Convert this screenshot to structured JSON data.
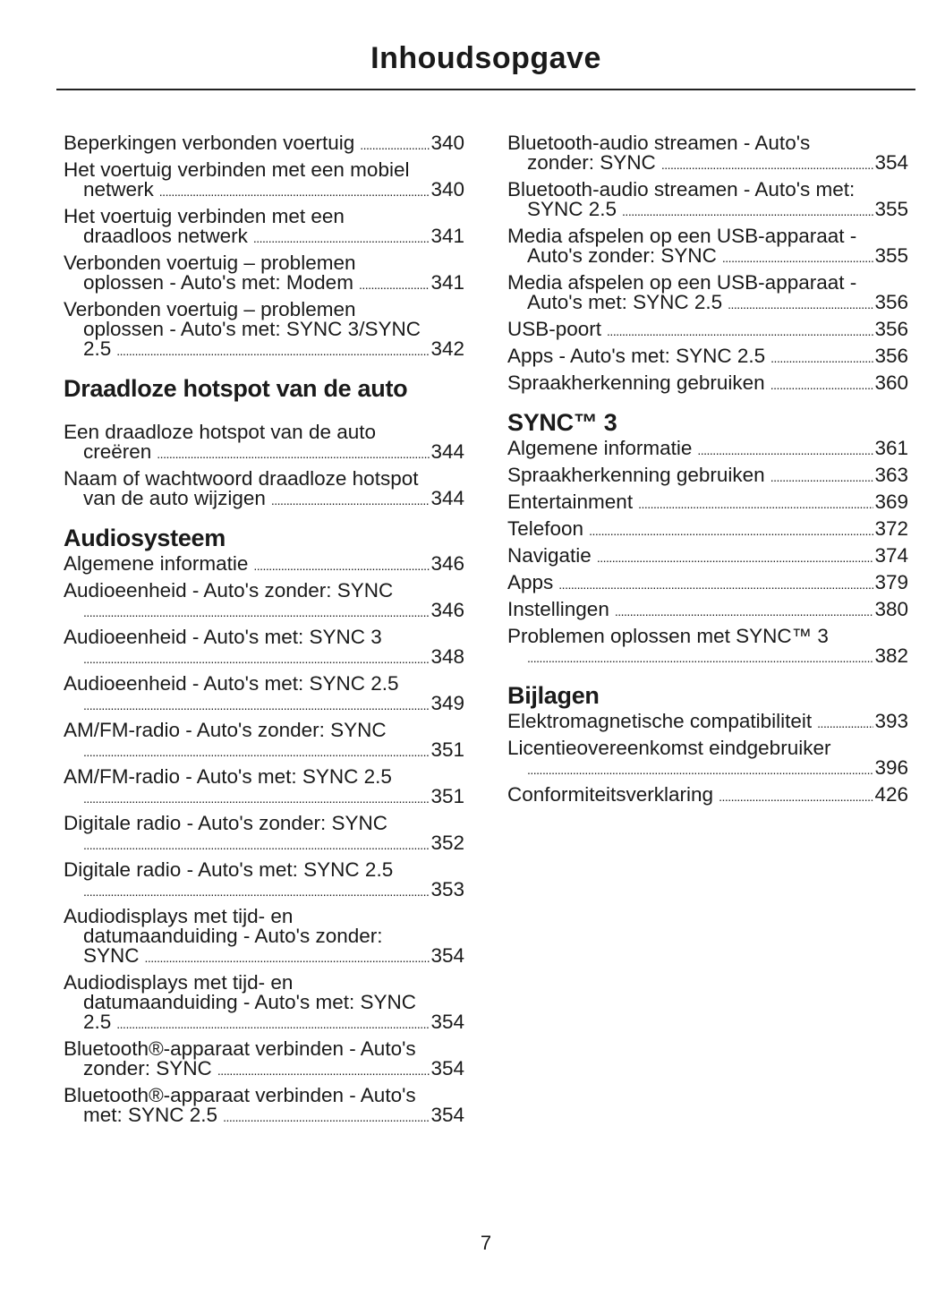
{
  "title": "Inhoudsopgave",
  "page_number": "7",
  "columns": [
    {
      "sections": [
        {
          "heading": "",
          "entries": [
            {
              "lines": [
                "Beperkingen verbonden voertuig"
              ],
              "page": "340"
            },
            {
              "lines": [
                "Het voertuig verbinden met een mobiel",
                "netwerk"
              ],
              "page": "340"
            },
            {
              "lines": [
                "Het voertuig verbinden met een",
                "draadloos netwerk"
              ],
              "page": "341"
            },
            {
              "lines": [
                "Verbonden voertuig – problemen",
                "oplossen - Auto's met: Modem"
              ],
              "page": "341"
            },
            {
              "lines": [
                "Verbonden voertuig – problemen",
                "oplossen - Auto's met: SYNC 3/SYNC",
                "2.5"
              ],
              "page": "342"
            }
          ]
        },
        {
          "heading": "Draadloze hotspot van de auto",
          "entries": [
            {
              "lines": [
                "Een draadloze hotspot van de auto",
                "creëren"
              ],
              "page": "344"
            },
            {
              "lines": [
                "Naam of wachtwoord draadloze hotspot",
                "van de auto wijzigen"
              ],
              "page": "344"
            }
          ]
        },
        {
          "heading": "Audiosysteem",
          "entries": [
            {
              "lines": [
                "Algemene informatie"
              ],
              "page": "346"
            },
            {
              "lines": [
                "Audioeenheid - Auto's zonder: SYNC",
                ""
              ],
              "page": "346"
            },
            {
              "lines": [
                "Audioeenheid - Auto's met: SYNC 3",
                ""
              ],
              "page": "348"
            },
            {
              "lines": [
                "Audioeenheid - Auto's met: SYNC 2.5",
                ""
              ],
              "page": "349"
            },
            {
              "lines": [
                "AM/FM-radio - Auto's zonder: SYNC",
                ""
              ],
              "page": "351"
            },
            {
              "lines": [
                "AM/FM-radio - Auto's met: SYNC 2.5",
                ""
              ],
              "page": "351"
            },
            {
              "lines": [
                "Digitale radio - Auto's zonder: SYNC",
                ""
              ],
              "page": "352"
            },
            {
              "lines": [
                "Digitale radio - Auto's met: SYNC 2.5",
                ""
              ],
              "page": "353"
            },
            {
              "lines": [
                "Audiodisplays met tijd- en",
                "datumaanduiding - Auto's zonder:",
                "SYNC"
              ],
              "page": "354"
            },
            {
              "lines": [
                "Audiodisplays met tijd- en",
                "datumaanduiding - Auto's met: SYNC",
                "2.5"
              ],
              "page": "354"
            },
            {
              "lines": [
                "Bluetooth®-apparaat verbinden - Auto's",
                "zonder: SYNC"
              ],
              "page": "354"
            },
            {
              "lines": [
                "Bluetooth®-apparaat verbinden - Auto's",
                "met: SYNC 2.5"
              ],
              "page": "354"
            }
          ]
        }
      ]
    },
    {
      "sections": [
        {
          "heading": "",
          "entries": [
            {
              "lines": [
                "Bluetooth-audio streamen - Auto's",
                "zonder: SYNC"
              ],
              "page": "354"
            },
            {
              "lines": [
                "Bluetooth-audio streamen - Auto's met:",
                "SYNC 2.5"
              ],
              "page": "355"
            },
            {
              "lines": [
                "Media afspelen op een USB-apparaat -",
                "Auto's zonder: SYNC"
              ],
              "page": "355"
            },
            {
              "lines": [
                "Media afspelen op een USB-apparaat -",
                "Auto's met: SYNC 2.5"
              ],
              "page": "356"
            },
            {
              "lines": [
                "USB-poort"
              ],
              "page": "356"
            },
            {
              "lines": [
                "Apps - Auto's met: SYNC 2.5"
              ],
              "page": "356"
            },
            {
              "lines": [
                "Spraakherkenning gebruiken"
              ],
              "page": "360"
            }
          ]
        },
        {
          "heading": "SYNC™ 3",
          "entries": [
            {
              "lines": [
                "Algemene informatie"
              ],
              "page": "361"
            },
            {
              "lines": [
                "Spraakherkenning gebruiken"
              ],
              "page": "363"
            },
            {
              "lines": [
                "Entertainment"
              ],
              "page": "369"
            },
            {
              "lines": [
                "Telefoon"
              ],
              "page": "372"
            },
            {
              "lines": [
                "Navigatie"
              ],
              "page": "374"
            },
            {
              "lines": [
                "Apps"
              ],
              "page": "379"
            },
            {
              "lines": [
                "Instellingen"
              ],
              "page": "380"
            },
            {
              "lines": [
                "Problemen oplossen met SYNC™ 3",
                ""
              ],
              "page": "382"
            }
          ]
        },
        {
          "heading": "Bijlagen",
          "entries": [
            {
              "lines": [
                "Elektromagnetische compatibiliteit"
              ],
              "page": "393"
            },
            {
              "lines": [
                "Licentieovereenkomst eindgebruiker",
                ""
              ],
              "page": "396"
            },
            {
              "lines": [
                "Conformiteitsverklaring"
              ],
              "page": "426"
            }
          ]
        }
      ]
    }
  ]
}
